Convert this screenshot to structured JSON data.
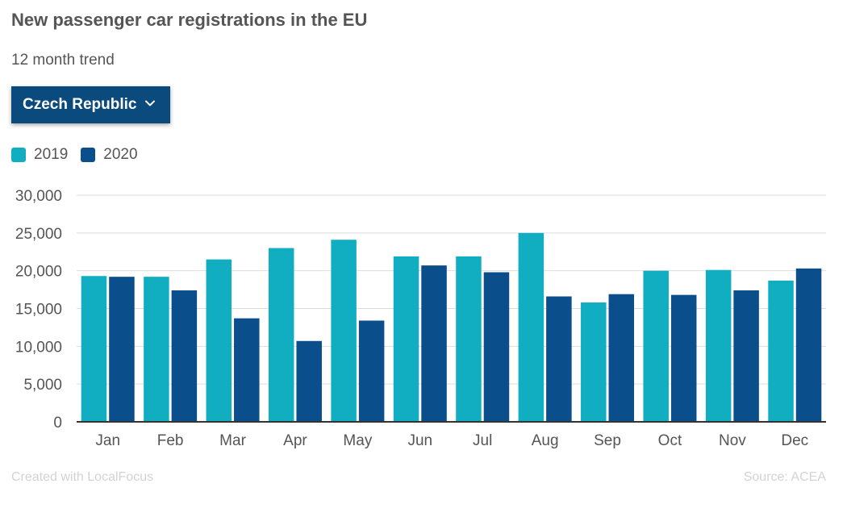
{
  "header": {
    "title": "New passenger car registrations in the EU",
    "subtitle": "12 month trend"
  },
  "selector": {
    "selected": "Czech Republic",
    "icon": "chevron-down-icon"
  },
  "legend": {
    "items": [
      {
        "label": "2019",
        "color": "#11aec1"
      },
      {
        "label": "2020",
        "color": "#0b4e8c"
      }
    ]
  },
  "footer": {
    "credit": "Created with LocalFocus",
    "source": "Source: ACEA"
  },
  "chart_data": {
    "type": "bar",
    "categories": [
      "Jan",
      "Feb",
      "Mar",
      "Apr",
      "May",
      "Jun",
      "Jul",
      "Aug",
      "Sep",
      "Oct",
      "Nov",
      "Dec"
    ],
    "series": [
      {
        "name": "2019",
        "color": "#11aec1",
        "values": [
          19300,
          19200,
          21500,
          23000,
          24100,
          21900,
          21900,
          25000,
          15800,
          20000,
          20100,
          18700
        ]
      },
      {
        "name": "2020",
        "color": "#0b4e8c",
        "values": [
          19200,
          17400,
          13700,
          10700,
          13400,
          20700,
          19800,
          16600,
          16900,
          16800,
          17400,
          20300
        ]
      }
    ],
    "ylim": [
      0,
      30000
    ],
    "yticks": [
      0,
      5000,
      10000,
      15000,
      20000,
      25000,
      30000
    ],
    "ytick_labels": [
      "0",
      "5,000",
      "10,000",
      "15,000",
      "20,000",
      "25,000",
      "30,000"
    ],
    "grid": true,
    "legend_position": "top-left"
  }
}
